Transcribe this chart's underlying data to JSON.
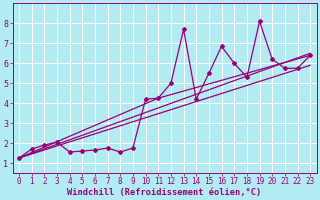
{
  "xlabel": "Windchill (Refroidissement éolien,°C)",
  "bg_color": "#b2ebf2",
  "line_color": "#990077",
  "grid_color": "#ffffff",
  "xlim": [
    -0.5,
    23.5
  ],
  "ylim": [
    0.5,
    9.0
  ],
  "xticks": [
    0,
    1,
    2,
    3,
    4,
    5,
    6,
    7,
    8,
    9,
    10,
    11,
    12,
    13,
    14,
    15,
    16,
    17,
    18,
    19,
    20,
    21,
    22,
    23
  ],
  "yticks": [
    1,
    2,
    3,
    4,
    5,
    6,
    7,
    8
  ],
  "main_series": {
    "x": [
      0,
      1,
      2,
      3,
      4,
      5,
      6,
      7,
      8,
      9,
      10,
      11,
      12,
      13,
      14,
      15,
      16,
      17,
      18,
      19,
      20,
      21,
      22,
      23
    ],
    "y": [
      1.25,
      1.7,
      1.9,
      2.05,
      1.55,
      1.6,
      1.65,
      1.75,
      1.55,
      1.75,
      4.2,
      4.25,
      5.0,
      7.7,
      4.2,
      5.5,
      6.85,
      6.0,
      5.3,
      8.1,
      6.2,
      5.75,
      5.75,
      6.4
    ]
  },
  "line1": {
    "x": [
      0,
      23
    ],
    "y": [
      1.25,
      6.5
    ]
  },
  "line2": {
    "x": [
      0,
      23
    ],
    "y": [
      1.25,
      5.9
    ]
  },
  "line3": {
    "x": [
      0,
      11,
      23
    ],
    "y": [
      1.25,
      4.25,
      6.4
    ]
  }
}
